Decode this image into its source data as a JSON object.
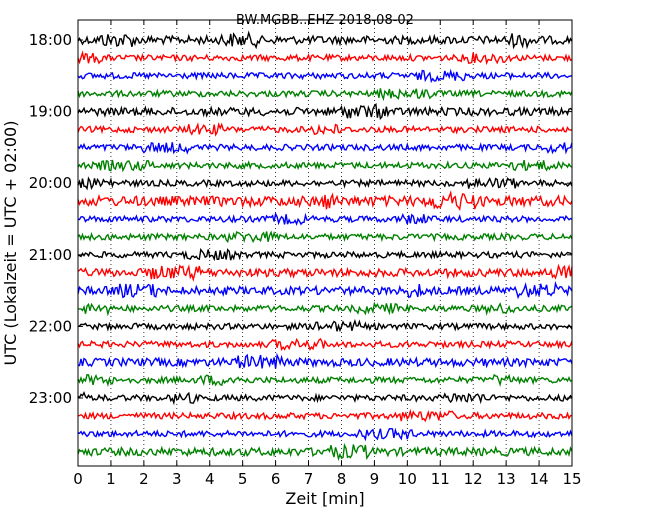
{
  "chart_data": {
    "type": "line",
    "title": "BW.MGBB..EHZ 2018-08-02",
    "xlabel": "Zeit  [min]",
    "ylabel": "UTC (Lokalzeit = UTC + 02:00)",
    "xlim": [
      0,
      15
    ],
    "xticks": [
      0,
      1,
      2,
      3,
      4,
      5,
      6,
      7,
      8,
      9,
      10,
      11,
      12,
      13,
      14,
      15
    ],
    "yticks": [
      "18:00",
      "19:00",
      "20:00",
      "21:00",
      "22:00",
      "23:00"
    ],
    "ytick_rows": [
      0,
      4,
      8,
      12,
      16,
      20
    ],
    "grid": "vertical-dotted",
    "series_colors": [
      "#000000",
      "#ff0000",
      "#0000ff",
      "#008000"
    ],
    "traces": [
      {
        "row": 0,
        "color": "#000000",
        "amplitude": 4
      },
      {
        "row": 1,
        "color": "#ff0000",
        "amplitude": 3
      },
      {
        "row": 2,
        "color": "#0000ff",
        "amplitude": 3
      },
      {
        "row": 3,
        "color": "#008000",
        "amplitude": 3
      },
      {
        "row": 4,
        "color": "#000000",
        "amplitude": 4
      },
      {
        "row": 5,
        "color": "#ff0000",
        "amplitude": 3
      },
      {
        "row": 6,
        "color": "#0000ff",
        "amplitude": 3
      },
      {
        "row": 7,
        "color": "#008000",
        "amplitude": 3
      },
      {
        "row": 8,
        "color": "#000000",
        "amplitude": 3
      },
      {
        "row": 9,
        "color": "#ff0000",
        "amplitude": 5
      },
      {
        "row": 10,
        "color": "#0000ff",
        "amplitude": 3
      },
      {
        "row": 11,
        "color": "#008000",
        "amplitude": 3
      },
      {
        "row": 12,
        "color": "#000000",
        "amplitude": 3
      },
      {
        "row": 13,
        "color": "#ff0000",
        "amplitude": 4
      },
      {
        "row": 14,
        "color": "#0000ff",
        "amplitude": 4
      },
      {
        "row": 15,
        "color": "#008000",
        "amplitude": 3
      },
      {
        "row": 16,
        "color": "#000000",
        "amplitude": 3
      },
      {
        "row": 17,
        "color": "#ff0000",
        "amplitude": 3
      },
      {
        "row": 18,
        "color": "#0000ff",
        "amplitude": 4
      },
      {
        "row": 19,
        "color": "#008000",
        "amplitude": 3
      },
      {
        "row": 20,
        "color": "#000000",
        "amplitude": 3
      },
      {
        "row": 21,
        "color": "#ff0000",
        "amplitude": 3
      },
      {
        "row": 22,
        "color": "#0000ff",
        "amplitude": 3
      },
      {
        "row": 23,
        "color": "#008000",
        "amplitude": 4
      }
    ]
  }
}
